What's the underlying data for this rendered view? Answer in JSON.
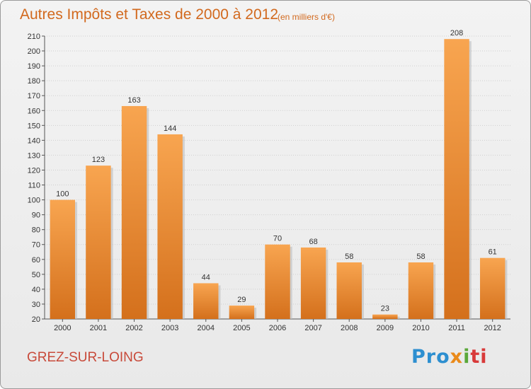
{
  "title": "Autres Impôts et Taxes de 2000 à 2012",
  "subtitle": "(en milliers d'€)",
  "commune": "GREZ-SUR-LOING",
  "logo": {
    "parts": [
      "Pro",
      "x",
      "i",
      "ti"
    ]
  },
  "colors": {
    "bar_light": "#f8a550",
    "bar_dark": "#d4701c",
    "text_accent": "#d2691e"
  },
  "chart_data": {
    "type": "bar",
    "categories": [
      "2000",
      "2001",
      "2002",
      "2003",
      "2004",
      "2005",
      "2006",
      "2007",
      "2008",
      "2009",
      "2010",
      "2011",
      "2012"
    ],
    "values": [
      100,
      123,
      163,
      144,
      44,
      29,
      70,
      68,
      58,
      23,
      58,
      208,
      61
    ],
    "ylim": [
      20,
      210
    ],
    "yticks": [
      20,
      30,
      40,
      50,
      60,
      70,
      80,
      90,
      100,
      110,
      120,
      130,
      140,
      150,
      160,
      170,
      180,
      190,
      200,
      210
    ],
    "grid": true
  }
}
